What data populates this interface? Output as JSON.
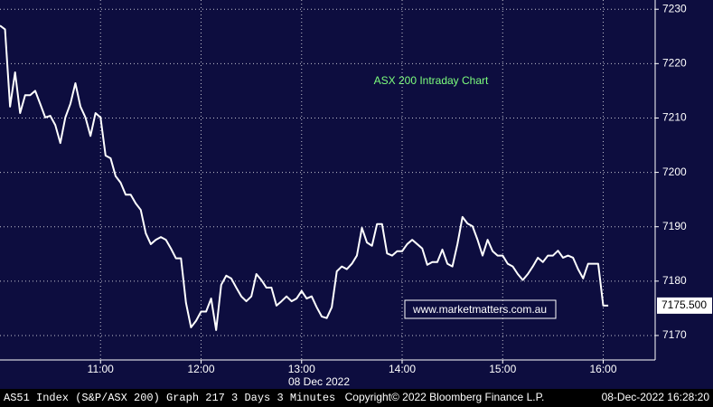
{
  "chart_data": {
    "type": "line",
    "title": "ASX 200 Intraday Chart",
    "watermark": "www.marketmatters.com.au",
    "date_label": "08 Dec 2022",
    "footer_left": "AS51 Index (S&P/ASX 200) Graph 217 3 Days 3 Minutes",
    "footer_center": "Copyright© 2022 Bloomberg Finance L.P.",
    "footer_right": "08-Dec-2022 16:28:20",
    "x": [
      "10:00",
      "10:03",
      "10:06",
      "10:09",
      "10:12",
      "10:15",
      "10:18",
      "10:21",
      "10:24",
      "10:27",
      "10:30",
      "10:33",
      "10:36",
      "10:39",
      "10:42",
      "10:45",
      "10:48",
      "10:51",
      "10:54",
      "10:57",
      "11:00",
      "11:03",
      "11:06",
      "11:09",
      "11:12",
      "11:15",
      "11:18",
      "11:21",
      "11:24",
      "11:27",
      "11:30",
      "11:33",
      "11:36",
      "11:39",
      "11:42",
      "11:45",
      "11:48",
      "11:51",
      "11:54",
      "11:57",
      "12:00",
      "12:03",
      "12:06",
      "12:09",
      "12:12",
      "12:15",
      "12:18",
      "12:21",
      "12:24",
      "12:27",
      "12:30",
      "12:33",
      "12:36",
      "12:39",
      "12:42",
      "12:45",
      "12:48",
      "12:51",
      "12:54",
      "12:57",
      "13:00",
      "13:03",
      "13:06",
      "13:09",
      "13:12",
      "13:15",
      "13:18",
      "13:21",
      "13:24",
      "13:27",
      "13:30",
      "13:33",
      "13:36",
      "13:39",
      "13:42",
      "13:45",
      "13:48",
      "13:51",
      "13:54",
      "13:57",
      "14:00",
      "14:03",
      "14:06",
      "14:09",
      "14:12",
      "14:15",
      "14:18",
      "14:21",
      "14:24",
      "14:27",
      "14:30",
      "14:33",
      "14:36",
      "14:39",
      "14:42",
      "14:45",
      "14:48",
      "14:51",
      "14:54",
      "14:57",
      "15:00",
      "15:03",
      "15:06",
      "15:09",
      "15:12",
      "15:15",
      "15:18",
      "15:21",
      "15:24",
      "15:27",
      "15:30",
      "15:33",
      "15:36",
      "15:39",
      "15:42",
      "15:45",
      "15:48",
      "15:51",
      "15:54",
      "15:57",
      "16:00",
      "16:03"
    ],
    "series": [
      {
        "name": "AS51 Index",
        "color": "#ffffff",
        "values": [
          7227.0,
          7226.3,
          7212.1,
          7218.4,
          7210.9,
          7214.2,
          7214.2,
          7215.0,
          7212.6,
          7210.1,
          7210.4,
          7208.7,
          7205.4,
          7210.1,
          7212.6,
          7216.4,
          7212.1,
          7210.1,
          7206.7,
          7210.9,
          7210.1,
          7203.1,
          7202.6,
          7199.3,
          7198.1,
          7195.9,
          7195.9,
          7194.3,
          7193.1,
          7188.8,
          7186.8,
          7187.6,
          7188.1,
          7187.6,
          7186.0,
          7184.2,
          7184.2,
          7176.0,
          7171.5,
          7172.7,
          7174.4,
          7174.4,
          7176.8,
          7171.0,
          7179.3,
          7181.0,
          7180.5,
          7178.8,
          7177.2,
          7176.3,
          7177.2,
          7181.3,
          7180.2,
          7178.8,
          7178.8,
          7175.5,
          7176.3,
          7177.2,
          7176.3,
          7176.8,
          7178.2,
          7176.8,
          7177.2,
          7175.2,
          7173.5,
          7173.2,
          7175.2,
          7181.8,
          7182.7,
          7182.2,
          7183.2,
          7184.7,
          7189.8,
          7187.1,
          7186.5,
          7190.5,
          7190.5,
          7185.1,
          7184.7,
          7185.5,
          7185.5,
          7186.8,
          7187.6,
          7186.8,
          7186.0,
          7183.0,
          7183.5,
          7183.5,
          7185.8,
          7183.2,
          7182.7,
          7186.8,
          7191.8,
          7190.6,
          7190.1,
          7187.6,
          7184.7,
          7187.6,
          7185.5,
          7184.7,
          7184.7,
          7183.2,
          7182.7,
          7181.3,
          7180.2,
          7181.3,
          7182.7,
          7184.3,
          7183.5,
          7184.7,
          7184.7,
          7185.6,
          7184.3,
          7184.7,
          7184.3,
          7182.2,
          7180.5,
          7183.2,
          7183.2,
          7183.2,
          7175.5,
          7175.5
        ]
      }
    ],
    "last_price": {
      "value": 7175.5,
      "label": "7175.500"
    },
    "xlim": [
      "10:00",
      "16:31"
    ],
    "xticks": [
      "11:00",
      "12:00",
      "13:00",
      "14:00",
      "15:00",
      "16:00"
    ],
    "ylim": [
      7165.5,
      7231.7
    ],
    "yticks": [
      7170,
      7180,
      7190,
      7200,
      7210,
      7220,
      7230
    ],
    "grid": true
  }
}
